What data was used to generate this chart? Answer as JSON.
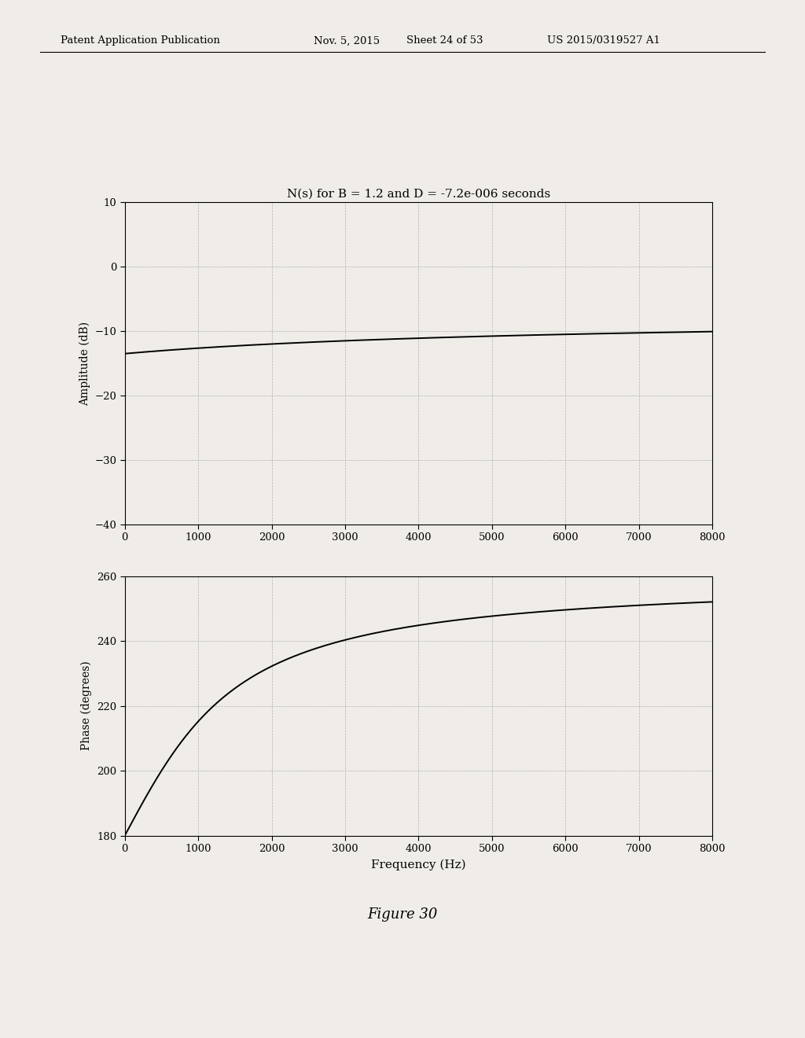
{
  "title": "N(s) for B = 1.2 and D = -7.2e-006 seconds",
  "freq_min": 0,
  "freq_max": 8000,
  "freq_xticks": [
    0,
    1000,
    2000,
    3000,
    4000,
    5000,
    6000,
    7000,
    8000
  ],
  "amp_ylim": [
    -40,
    10
  ],
  "amp_yticks": [
    -40,
    -30,
    -20,
    -10,
    0,
    10
  ],
  "amp_ylabel": "Amplitude (dB)",
  "phase_ylim": [
    180,
    260
  ],
  "phase_yticks": [
    180,
    200,
    220,
    240,
    260
  ],
  "phase_ylabel": "Phase (degrees)",
  "xlabel": "Frequency (Hz)",
  "figure_caption": "Figure 30",
  "B": 1.2,
  "D": -7.2e-06,
  "background_color": "#f0ede8",
  "line_color": "#000000",
  "grid_color": "#999999",
  "header_text": "Patent Application Publication",
  "header_date": "Nov. 5, 2015",
  "header_sheet": "Sheet 24 of 53",
  "header_pub": "US 2015/0319527 A1"
}
